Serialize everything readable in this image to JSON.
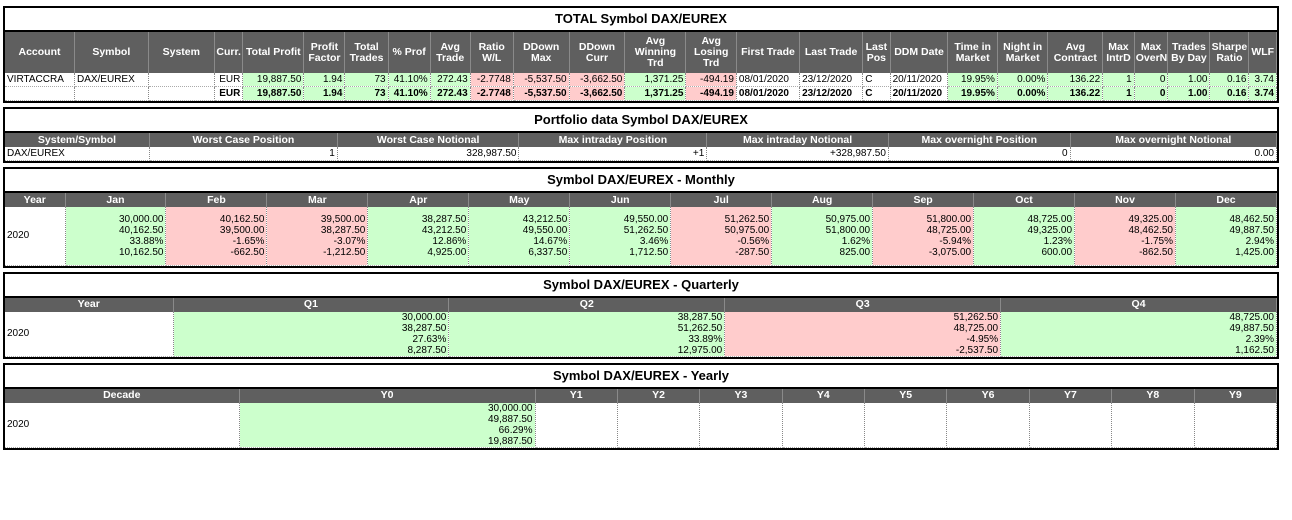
{
  "total": {
    "title": "TOTAL Symbol DAX/EUREX",
    "headers": [
      "Account",
      "Symbol",
      "System",
      "Curr.",
      "Total Profit",
      "Profit Factor",
      "Total Trades",
      "% Prof",
      "Avg Trade",
      "Ratio W/L",
      "DDown Max",
      "DDown Curr",
      "Avg Winning Trd",
      "Avg Losing Trd",
      "First Trade",
      "Last Trade",
      "Last Pos",
      "DDM Date",
      "Time in Market",
      "Night in Market",
      "Avg Contract",
      "Max IntrD",
      "Max OverN",
      "Trades By Day",
      "Sharpe Ratio",
      "WLF"
    ],
    "row1": [
      "VIRTACCRA",
      "DAX/EUREX",
      "",
      "EUR",
      "19,887.50",
      "1.94",
      "73",
      "41.10%",
      "272.43",
      "-2.7748",
      "-5,537.50",
      "-3,662.50",
      "1,371.25",
      "-494.19",
      "08/01/2020",
      "23/12/2020",
      "C",
      "20/11/2020",
      "19.95%",
      "0.00%",
      "136.22",
      "1",
      "0",
      "1.00",
      "0.16",
      "3.74"
    ],
    "row2": [
      "",
      "",
      "",
      "EUR",
      "19,887.50",
      "1.94",
      "73",
      "41.10%",
      "272.43",
      "-2.7748",
      "-5,537.50",
      "-3,662.50",
      "1,371.25",
      "-494.19",
      "08/01/2020",
      "23/12/2020",
      "C",
      "20/11/2020",
      "19.95%",
      "0.00%",
      "136.22",
      "1",
      "0",
      "1.00",
      "0.16",
      "3.74"
    ]
  },
  "portfolio": {
    "title": "Portfolio data Symbol DAX/EUREX",
    "headers": [
      "System/Symbol",
      "Worst Case Position",
      "Worst Case Notional",
      "Max intraday Position",
      "Max intraday Notional",
      "Max overnight Position",
      "Max overnight Notional"
    ],
    "row": [
      "DAX/EUREX",
      "1",
      "328,987.50",
      "+1",
      "+328,987.50",
      "0",
      "0.00"
    ]
  },
  "monthly": {
    "title": "Symbol DAX/EUREX - Monthly",
    "headers": [
      "Year",
      "Jan",
      "Feb",
      "Mar",
      "Apr",
      "May",
      "Jun",
      "Jul",
      "Aug",
      "Sep",
      "Oct",
      "Nov",
      "Dec"
    ],
    "year": "2020",
    "cells": [
      [
        "30,000.00",
        "40,162.50",
        "33.88%",
        "10,162.50"
      ],
      [
        "40,162.50",
        "39,500.00",
        "-1.65%",
        "-662.50"
      ],
      [
        "39,500.00",
        "38,287.50",
        "-3.07%",
        "-1,212.50"
      ],
      [
        "38,287.50",
        "43,212.50",
        "12.86%",
        "4,925.00"
      ],
      [
        "43,212.50",
        "49,550.00",
        "14.67%",
        "6,337.50"
      ],
      [
        "49,550.00",
        "51,262.50",
        "3.46%",
        "1,712.50"
      ],
      [
        "51,262.50",
        "50,975.00",
        "-0.56%",
        "-287.50"
      ],
      [
        "50,975.00",
        "51,800.00",
        "1.62%",
        "825.00"
      ],
      [
        "51,800.00",
        "48,725.00",
        "-5.94%",
        "-3,075.00"
      ],
      [
        "48,725.00",
        "49,325.00",
        "1.23%",
        "600.00"
      ],
      [
        "49,325.00",
        "48,462.50",
        "-1.75%",
        "-862.50"
      ],
      [
        "48,462.50",
        "49,887.50",
        "2.94%",
        "1,425.00"
      ]
    ],
    "positive": [
      true,
      false,
      false,
      true,
      true,
      true,
      false,
      true,
      false,
      true,
      false,
      true
    ]
  },
  "quarterly": {
    "title": "Symbol DAX/EUREX - Quarterly",
    "headers": [
      "Year",
      "Q1",
      "Q2",
      "Q3",
      "Q4"
    ],
    "year": "2020",
    "cells": [
      [
        "30,000.00",
        "38,287.50",
        "27.63%",
        "8,287.50"
      ],
      [
        "38,287.50",
        "51,262.50",
        "33.89%",
        "12,975.00"
      ],
      [
        "51,262.50",
        "48,725.00",
        "-4.95%",
        "-2,537.50"
      ],
      [
        "48,725.00",
        "49,887.50",
        "2.39%",
        "1,162.50"
      ]
    ],
    "positive": [
      true,
      true,
      false,
      true
    ]
  },
  "yearly": {
    "title": "Symbol DAX/EUREX - Yearly",
    "headers": [
      "Decade",
      "Y0",
      "Y1",
      "Y2",
      "Y3",
      "Y4",
      "Y5",
      "Y6",
      "Y7",
      "Y8",
      "Y9"
    ],
    "year": "2020",
    "y0": [
      "30,000.00",
      "49,887.50",
      "66.29%",
      "19,887.50"
    ]
  },
  "colors": {
    "header": "#5f5f5f",
    "positive": "#ccffcc",
    "negative": "#ffcccc"
  }
}
